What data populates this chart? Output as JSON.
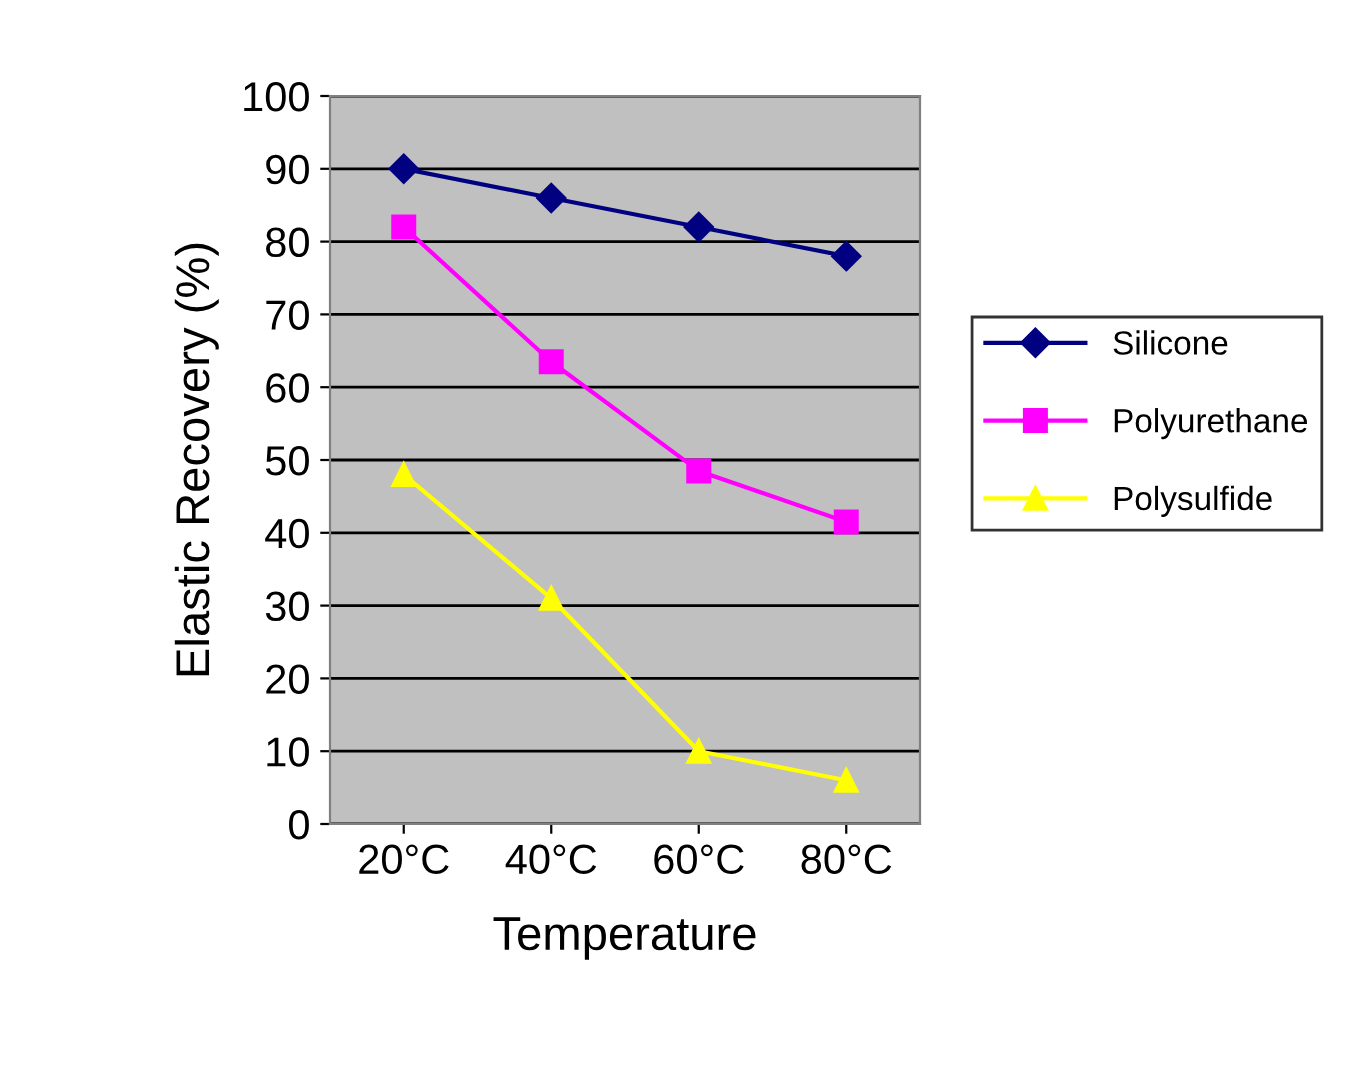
{
  "chart_data": {
    "type": "line",
    "xlabel": "Temperature",
    "ylabel": "Elastic Recovery (%)",
    "categories": [
      "20°C",
      "40°C",
      "60°C",
      "80°C"
    ],
    "series": [
      {
        "name": "Silicone",
        "color": "#000080",
        "marker": "diamond",
        "values": [
          90,
          86,
          82,
          78
        ]
      },
      {
        "name": "Polyurethane",
        "color": "#ff00ff",
        "marker": "square",
        "values": [
          82,
          63.5,
          48.5,
          41.5
        ]
      },
      {
        "name": "Polysulfide",
        "color": "#ffff00",
        "marker": "triangle",
        "values": [
          48,
          31,
          10,
          6
        ]
      }
    ],
    "ylim": [
      0,
      100
    ],
    "yticks": [
      0,
      10,
      20,
      30,
      40,
      50,
      60,
      70,
      80,
      90,
      100
    ],
    "grid": "y",
    "legend": "right",
    "line_style": "solid"
  }
}
